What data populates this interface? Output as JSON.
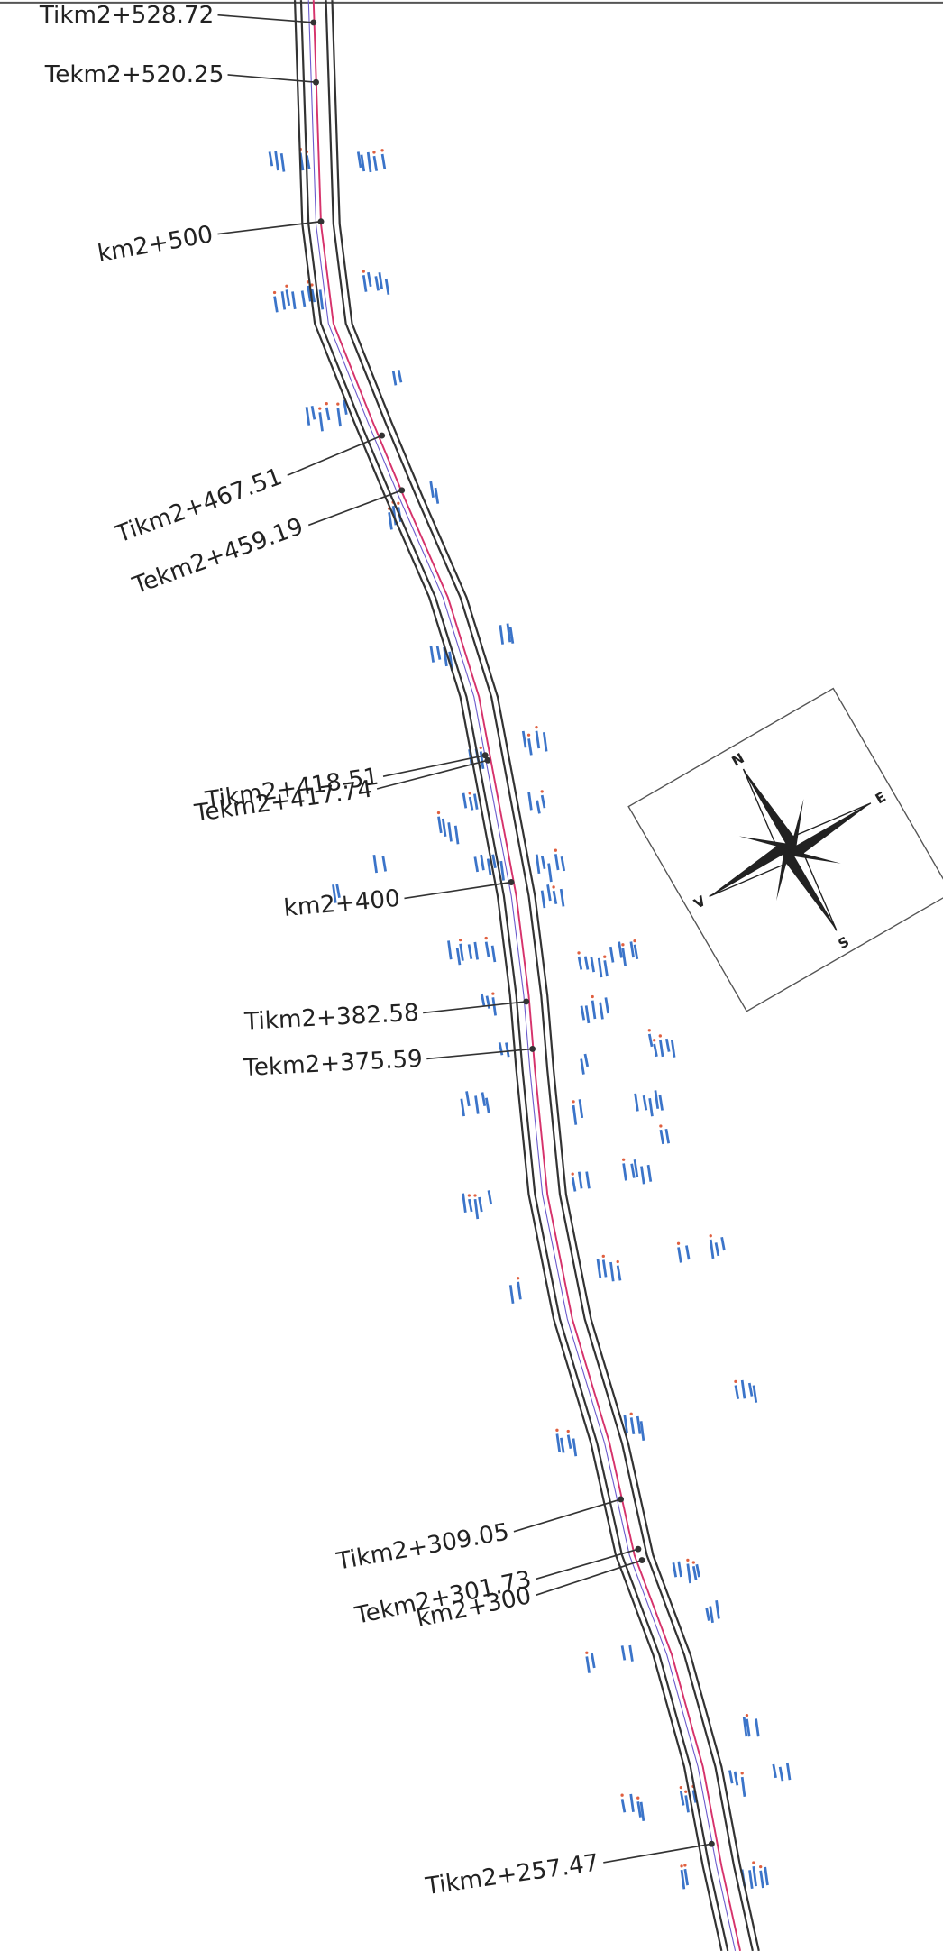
{
  "stations": [
    {
      "label": "Tikm2+528.72"
    },
    {
      "label": "Tekm2+520.25"
    },
    {
      "label": "km2+500"
    },
    {
      "label": "Tikm2+467.51"
    },
    {
      "label": "Tekm2+459.19"
    },
    {
      "label": "Tikm2+418.51"
    },
    {
      "label": "Tekm2+417.74"
    },
    {
      "label": "km2+400"
    },
    {
      "label": "Tikm2+382.58"
    },
    {
      "label": "Tekm2+375.59"
    },
    {
      "label": "Tikm2+309.05"
    },
    {
      "label": "Tekm2+301.73"
    },
    {
      "label": "km2+300"
    },
    {
      "label": "Tikm2+257.47"
    }
  ],
  "compass": {
    "north": "N",
    "east": "E",
    "south": "S",
    "west": "V"
  }
}
